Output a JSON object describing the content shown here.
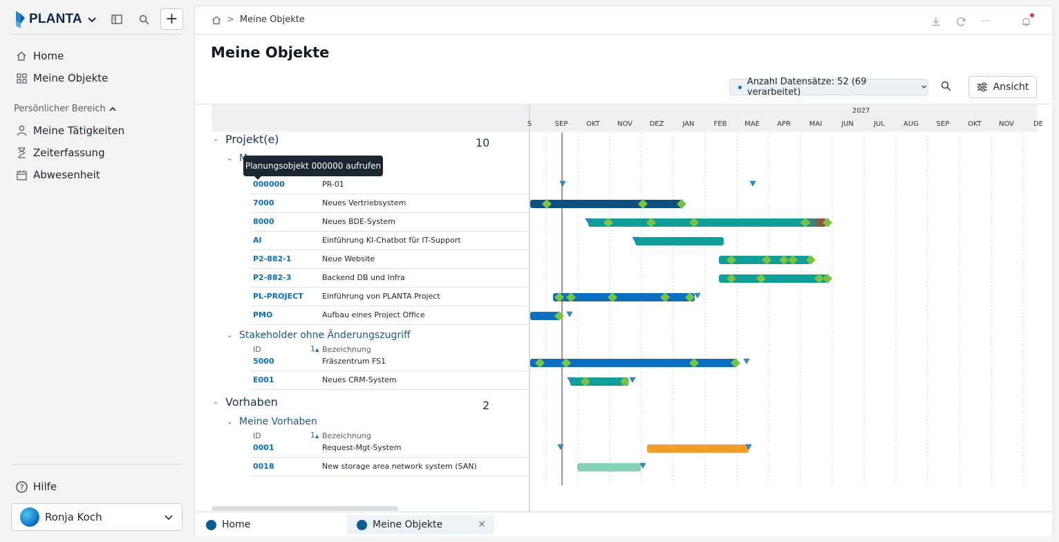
{
  "sidebar": {
    "logo_text": "PLANTA",
    "nav": [
      {
        "label": "Home",
        "icon": "home-icon"
      },
      {
        "label": "Meine Objekte",
        "icon": "grid-icon"
      }
    ],
    "section_label": "Persönlicher Bereich",
    "personal": [
      {
        "label": "Meine Tätigkeiten",
        "icon": "person-icon"
      },
      {
        "label": "Zeiterfassung",
        "icon": "hourglass-icon"
      },
      {
        "label": "Abwesenheit",
        "icon": "calendar-icon"
      }
    ],
    "help_label": "Hilfe",
    "user_name": "Ronja Koch"
  },
  "breadcrumb": {
    "current": "Meine Objekte"
  },
  "page_title": "Meine Objekte",
  "toolbar": {
    "records_label": "Anzahl Datensätze: 52 (69 verarbeitet)",
    "view_label": "Ansicht"
  },
  "tooltip": "Planungsobjekt 000000 aufrufen",
  "timeline": {
    "year": "2027",
    "months": [
      "S",
      "SEP",
      "OKT",
      "NOV",
      "DEZ",
      "JAN",
      "FEB",
      "MAE",
      "APR",
      "MAI",
      "JUN",
      "JUL",
      "AUG",
      "SEP",
      "OKT",
      "NOV",
      "DE"
    ]
  },
  "groups": {
    "projects": {
      "label": "Projekt(e)",
      "count": "10",
      "sub1": "M",
      "sub2": "Stakeholder ohne Änderungszugriff"
    },
    "vorhaben": {
      "label": "Vorhaben",
      "count": "2",
      "sub1": "Meine Vorhaben"
    }
  },
  "columns": {
    "id": "ID",
    "sort": "1",
    "name": "Bezeichnung"
  },
  "rows": [
    {
      "id": "000000",
      "name": "PR-01"
    },
    {
      "id": "7000",
      "name": "Neues Vertriebsystem"
    },
    {
      "id": "8000",
      "name": "Neues BDE-System"
    },
    {
      "id": "AI",
      "name": "Einführung KI-Chatbot für IT-Support"
    },
    {
      "id": "P2-882-1",
      "name": "Neue Website"
    },
    {
      "id": "P2-882-3",
      "name": "Backend DB und Infra"
    },
    {
      "id": "PL-PROJECT",
      "name": "Einführung von PLANTA Project"
    },
    {
      "id": "PMO",
      "name": "Aufbau eines Project Office"
    },
    {
      "id": "5000",
      "name": "Fräszentrum FS1"
    },
    {
      "id": "E001",
      "name": "Neues CRM-System"
    },
    {
      "id": "0001",
      "name": "Request-Mgt-System"
    },
    {
      "id": "0018",
      "name": "New storage area network system (SAN)"
    }
  ],
  "tabs": [
    {
      "label": "Home"
    },
    {
      "label": "Meine Objekte"
    }
  ],
  "colors": {
    "accent": "#0a6fbf",
    "teal": "#0f9e9a",
    "navy": "#0b5180",
    "orange": "#f0a02a",
    "milestone": "#7cc243",
    "today": "#7a1020"
  }
}
